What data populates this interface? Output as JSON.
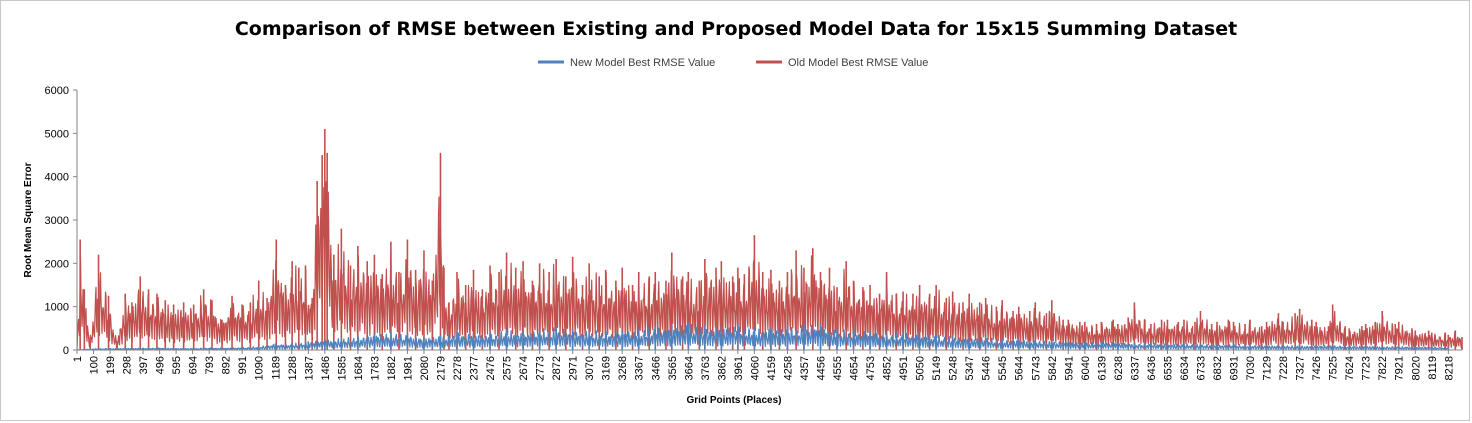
{
  "chart_data": {
    "type": "line",
    "title": "Comparison of RMSE between Existing and Proposed Model Data for 15x15 Summing Dataset",
    "xlabel": "Grid Points (Places)",
    "ylabel": "Root Mean Square Error",
    "ylim": [
      0,
      6000
    ],
    "y_ticks": [
      0,
      1000,
      2000,
      3000,
      4000,
      5000,
      6000
    ],
    "x_range": [
      1,
      8300
    ],
    "x_ticks": [
      "1",
      "100",
      "199",
      "298",
      "397",
      "496",
      "595",
      "694",
      "793",
      "892",
      "991",
      "1090",
      "1189",
      "1288",
      "1387",
      "1486",
      "1585",
      "1684",
      "1783",
      "1882",
      "1981",
      "2080",
      "2179",
      "2278",
      "2377",
      "2476",
      "2575",
      "2674",
      "2773",
      "2872",
      "2971",
      "3070",
      "3169",
      "3268",
      "3367",
      "3466",
      "3565",
      "3664",
      "3763",
      "3862",
      "3961",
      "4060",
      "4159",
      "4258",
      "4357",
      "4456",
      "4555",
      "4654",
      "4753",
      "4852",
      "4951",
      "5050",
      "5149",
      "5248",
      "5347",
      "5446",
      "5545",
      "5644",
      "5743",
      "5842",
      "5941",
      "6040",
      "6139",
      "6238",
      "6337",
      "6436",
      "6535",
      "6634",
      "6733",
      "6832",
      "6931",
      "7030",
      "7129",
      "7228",
      "7327",
      "7426",
      "7525",
      "7624",
      "7723",
      "7822",
      "7921",
      "8020",
      "8119",
      "8218"
    ],
    "grid": false,
    "legend_position": "top",
    "series": [
      {
        "name": "New Model Best RMSE Value",
        "color": "#4f81bd",
        "x": [
          1,
          100,
          199,
          298,
          397,
          496,
          595,
          694,
          793,
          892,
          991,
          1090,
          1189,
          1288,
          1387,
          1486,
          1585,
          1684,
          1783,
          1882,
          1981,
          2080,
          2179,
          2278,
          2377,
          2476,
          2575,
          2674,
          2773,
          2872,
          2971,
          3070,
          3169,
          3268,
          3367,
          3466,
          3565,
          3664,
          3763,
          3862,
          3961,
          4060,
          4159,
          4258,
          4357,
          4456,
          4555,
          4654,
          4753,
          4852,
          4951,
          5050,
          5149,
          5248,
          5347,
          5446,
          5545,
          5644,
          5743,
          5842,
          5941,
          6040,
          6139,
          6238,
          6337,
          6436,
          6535,
          6634,
          6733,
          6832,
          6931,
          7030,
          7129,
          7228,
          7327,
          7426,
          7525,
          7624,
          7723,
          7822,
          7921,
          8020,
          8119,
          8218
        ],
        "values": [
          0,
          30,
          40,
          40,
          50,
          50,
          40,
          40,
          50,
          50,
          60,
          80,
          150,
          150,
          200,
          250,
          280,
          320,
          380,
          420,
          380,
          300,
          350,
          420,
          380,
          400,
          480,
          420,
          500,
          520,
          480,
          450,
          450,
          450,
          480,
          550,
          560,
          650,
          560,
          560,
          600,
          520,
          520,
          560,
          600,
          600,
          480,
          480,
          450,
          400,
          400,
          380,
          350,
          320,
          300,
          300,
          250,
          250,
          230,
          220,
          200,
          180,
          200,
          180,
          170,
          160,
          150,
          150,
          140,
          130,
          130,
          120,
          110,
          110,
          100,
          110,
          110,
          100,
          95,
          90,
          85,
          80,
          75,
          70
        ]
      },
      {
        "name": "Old Model Best RMSE Value",
        "color": "#c0504d",
        "x": [
          1,
          20,
          45,
          80,
          130,
          190,
          240,
          290,
          330,
          380,
          430,
          480,
          530,
          580,
          640,
          700,
          760,
          810,
          870,
          930,
          990,
          1040,
          1090,
          1140,
          1195,
          1250,
          1290,
          1330,
          1370,
          1410,
          1440,
          1470,
          1486,
          1500,
          1540,
          1585,
          1640,
          1684,
          1740,
          1783,
          1830,
          1882,
          1930,
          1981,
          2030,
          2080,
          2130,
          2179,
          2200,
          2230,
          2278,
          2330,
          2377,
          2430,
          2476,
          2530,
          2575,
          2630,
          2674,
          2730,
          2773,
          2830,
          2872,
          2930,
          2971,
          3030,
          3070,
          3130,
          3169,
          3230,
          3268,
          3330,
          3367,
          3430,
          3466,
          3530,
          3565,
          3630,
          3664,
          3730,
          3763,
          3830,
          3862,
          3930,
          3961,
          4000,
          4060,
          4110,
          4159,
          4210,
          4258,
          4310,
          4357,
          4410,
          4456,
          4510,
          4555,
          4610,
          4654,
          4710,
          4753,
          4810,
          4852,
          4910,
          4951,
          5010,
          5050,
          5110,
          5149,
          5210,
          5248,
          5310,
          5347,
          5410,
          5446,
          5510,
          5545,
          5610,
          5644,
          5710,
          5743,
          5810,
          5842,
          5910,
          5941,
          6010,
          6040,
          6110,
          6139,
          6210,
          6238,
          6300,
          6337,
          6400,
          6436,
          6500,
          6535,
          6600,
          6634,
          6700,
          6733,
          6800,
          6832,
          6900,
          6931,
          7000,
          7030,
          7100,
          7129,
          7200,
          7228,
          7300,
          7327,
          7400,
          7426,
          7500,
          7525,
          7600,
          7624,
          7700,
          7723,
          7780,
          7822,
          7900,
          7921,
          8000,
          8020,
          8100,
          8119,
          8200,
          8218,
          8260,
          8300
        ],
        "values": [
          0,
          2550,
          1400,
          300,
          2200,
          1250,
          200,
          1300,
          1100,
          1700,
          1400,
          1300,
          1150,
          1050,
          1100,
          1050,
          1400,
          1150,
          700,
          1250,
          1050,
          1100,
          1600,
          1200,
          2550,
          1500,
          2050,
          1900,
          1950,
          1200,
          3900,
          4500,
          5100,
          4550,
          2200,
          2800,
          1950,
          2400,
          2050,
          2200,
          1750,
          2500,
          1800,
          2550,
          1850,
          2300,
          1600,
          4550,
          1900,
          1100,
          1800,
          1500,
          1850,
          1400,
          1950,
          1800,
          2250,
          1900,
          2050,
          1600,
          2000,
          1800,
          2100,
          1700,
          2150,
          1500,
          2000,
          1700,
          1850,
          1600,
          1900,
          1500,
          1800,
          1700,
          1800,
          1600,
          2250,
          1700,
          1800,
          1600,
          2100,
          1900,
          2050,
          1700,
          1900,
          1750,
          2650,
          1800,
          1850,
          1600,
          1800,
          2300,
          1900,
          2350,
          1800,
          1900,
          1450,
          2050,
          1600,
          1450,
          1500,
          1300,
          1800,
          1300,
          1350,
          1300,
          1500,
          1300,
          1500,
          1200,
          1350,
          1100,
          1300,
          1100,
          1200,
          1000,
          1150,
          900,
          1000,
          900,
          1100,
          850,
          1150,
          700,
          700,
          650,
          650,
          600,
          650,
          700,
          600,
          750,
          1100,
          700,
          600,
          700,
          700,
          650,
          700,
          650,
          900,
          600,
          650,
          700,
          650,
          600,
          700,
          550,
          650,
          850,
          650,
          850,
          950,
          700,
          650,
          550,
          1050,
          550,
          500,
          550,
          600,
          650,
          900,
          600,
          650,
          500,
          450,
          450,
          400,
          400,
          350,
          450,
          300
        ]
      }
    ]
  }
}
